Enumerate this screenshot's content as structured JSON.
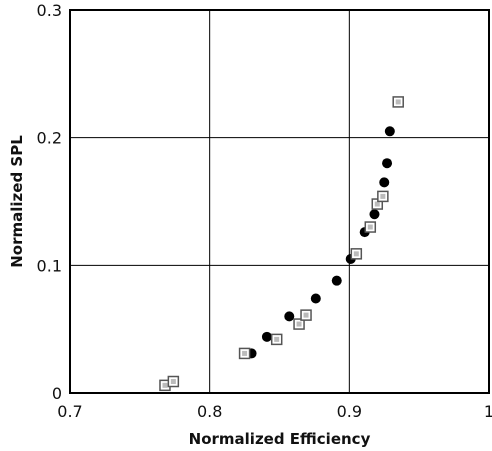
{
  "chart_data": {
    "type": "scatter",
    "title": "",
    "xlabel": "Normalized Efficiency",
    "ylabel": "Normalized SPL",
    "xlim": [
      0.7,
      1.0
    ],
    "ylim": [
      0.0,
      0.3
    ],
    "xticks": [
      0.7,
      0.8,
      0.9,
      1.0
    ],
    "xtick_labels": [
      "0.7",
      "0.8",
      "0.9",
      "1"
    ],
    "yticks": [
      0.0,
      0.1,
      0.2,
      0.3
    ],
    "ytick_labels": [
      "0",
      "0.1",
      "0.2",
      "0.3"
    ],
    "grid": true,
    "series": [
      {
        "marker": "filled-circle",
        "color": "#000000",
        "points": [
          [
            0.83,
            0.031
          ],
          [
            0.841,
            0.044
          ],
          [
            0.857,
            0.06
          ],
          [
            0.876,
            0.074
          ],
          [
            0.891,
            0.088
          ],
          [
            0.901,
            0.105
          ],
          [
            0.911,
            0.126
          ],
          [
            0.918,
            0.14
          ],
          [
            0.925,
            0.165
          ],
          [
            0.927,
            0.18
          ],
          [
            0.929,
            0.205
          ]
        ]
      },
      {
        "marker": "hollow-square",
        "color": "#555555",
        "points": [
          [
            0.768,
            0.006
          ],
          [
            0.774,
            0.009
          ],
          [
            0.825,
            0.031
          ],
          [
            0.848,
            0.042
          ],
          [
            0.864,
            0.054
          ],
          [
            0.869,
            0.061
          ],
          [
            0.905,
            0.109
          ],
          [
            0.915,
            0.13
          ],
          [
            0.92,
            0.148
          ],
          [
            0.924,
            0.154
          ],
          [
            0.935,
            0.228
          ]
        ]
      }
    ]
  }
}
